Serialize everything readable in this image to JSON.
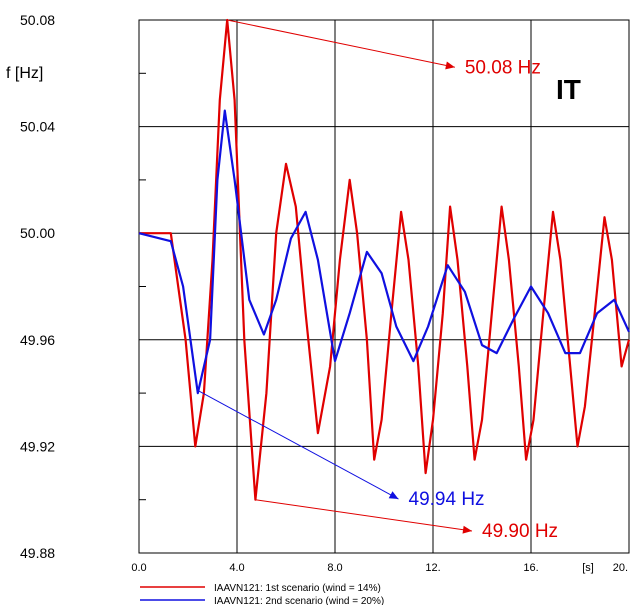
{
  "chart_data": {
    "type": "line",
    "title": "",
    "region_label": "IT",
    "xlabel": "",
    "ylabel": "f [Hz]",
    "x_unit_label": "[s]",
    "xlim": [
      0,
      20
    ],
    "ylim": [
      49.88,
      50.08
    ],
    "x_ticks": [
      0,
      4,
      8,
      12,
      16,
      18,
      20
    ],
    "x_tick_labels": [
      "0.0",
      "4.0",
      "8.0",
      "12.",
      "16.",
      "[s]",
      "20."
    ],
    "y_ticks": [
      49.88,
      49.92,
      49.96,
      50.0,
      50.04,
      50.08
    ],
    "y_tick_labels": [
      "49.88",
      "49.92",
      "49.96",
      "50.00",
      "50.04",
      "50.08"
    ],
    "grid": true,
    "legend_position": "bottom",
    "series": [
      {
        "name": "IAAVN121: 1st scenario (wind = 14%)",
        "color": "#e00000",
        "points": [
          [
            0,
            50.0
          ],
          [
            1.3,
            50.0
          ],
          [
            1.9,
            49.96
          ],
          [
            2.3,
            49.92
          ],
          [
            2.65,
            49.94
          ],
          [
            3.0,
            49.99
          ],
          [
            3.3,
            50.05
          ],
          [
            3.6,
            50.08
          ],
          [
            3.9,
            50.05
          ],
          [
            4.3,
            49.96
          ],
          [
            4.75,
            49.9
          ],
          [
            5.2,
            49.94
          ],
          [
            5.6,
            50.0
          ],
          [
            6.0,
            50.026
          ],
          [
            6.4,
            50.01
          ],
          [
            6.8,
            49.97
          ],
          [
            7.3,
            49.925
          ],
          [
            7.8,
            49.95
          ],
          [
            8.2,
            49.99
          ],
          [
            8.6,
            50.02
          ],
          [
            8.9,
            50.0
          ],
          [
            9.3,
            49.96
          ],
          [
            9.6,
            49.915
          ],
          [
            9.9,
            49.93
          ],
          [
            10.3,
            49.97
          ],
          [
            10.7,
            50.008
          ],
          [
            11.0,
            49.99
          ],
          [
            11.4,
            49.95
          ],
          [
            11.7,
            49.91
          ],
          [
            12.0,
            49.93
          ],
          [
            12.4,
            49.97
          ],
          [
            12.7,
            50.01
          ],
          [
            13.0,
            49.99
          ],
          [
            13.4,
            49.95
          ],
          [
            13.7,
            49.915
          ],
          [
            14.0,
            49.93
          ],
          [
            14.4,
            49.97
          ],
          [
            14.8,
            50.01
          ],
          [
            15.1,
            49.99
          ],
          [
            15.5,
            49.95
          ],
          [
            15.8,
            49.915
          ],
          [
            16.1,
            49.93
          ],
          [
            16.5,
            49.97
          ],
          [
            16.9,
            50.008
          ],
          [
            17.2,
            49.99
          ],
          [
            17.6,
            49.95
          ],
          [
            17.9,
            49.92
          ],
          [
            18.2,
            49.935
          ],
          [
            18.6,
            49.97
          ],
          [
            19.0,
            50.006
          ],
          [
            19.3,
            49.99
          ],
          [
            19.7,
            49.95
          ],
          [
            20.0,
            49.96
          ]
        ]
      },
      {
        "name": "IAAVN121: 2nd scenario (wind = 20%)",
        "color": "#1010e0",
        "points": [
          [
            0,
            50.0
          ],
          [
            1.3,
            49.997
          ],
          [
            1.8,
            49.98
          ],
          [
            2.4,
            49.94
          ],
          [
            2.9,
            49.96
          ],
          [
            3.2,
            50.02
          ],
          [
            3.5,
            50.046
          ],
          [
            3.9,
            50.02
          ],
          [
            4.5,
            49.975
          ],
          [
            5.1,
            49.962
          ],
          [
            5.6,
            49.975
          ],
          [
            6.2,
            49.998
          ],
          [
            6.8,
            50.008
          ],
          [
            7.3,
            49.99
          ],
          [
            8.0,
            49.952
          ],
          [
            8.6,
            49.97
          ],
          [
            9.3,
            49.993
          ],
          [
            9.9,
            49.985
          ],
          [
            10.5,
            49.965
          ],
          [
            11.2,
            49.952
          ],
          [
            11.8,
            49.965
          ],
          [
            12.6,
            49.988
          ],
          [
            13.3,
            49.978
          ],
          [
            14.0,
            49.958
          ],
          [
            14.6,
            49.955
          ],
          [
            15.3,
            49.968
          ],
          [
            16.0,
            49.98
          ],
          [
            16.7,
            49.97
          ],
          [
            17.4,
            49.955
          ],
          [
            18.0,
            49.955
          ],
          [
            18.7,
            49.97
          ],
          [
            19.4,
            49.975
          ],
          [
            20.0,
            49.963
          ]
        ]
      }
    ],
    "annotations": [
      {
        "text": "50.08 Hz",
        "color": "#e00000",
        "point": [
          3.6,
          50.08
        ],
        "label_at": [
          13.3,
          50.06
        ]
      },
      {
        "text": "49.94 Hz",
        "color": "#1010e0",
        "point": [
          2.4,
          49.941
        ],
        "label_at": [
          11.0,
          49.898
        ]
      },
      {
        "text": "49.90 Hz",
        "color": "#e00000",
        "point": [
          4.75,
          49.9
        ],
        "label_at": [
          14.0,
          49.886
        ]
      }
    ]
  }
}
